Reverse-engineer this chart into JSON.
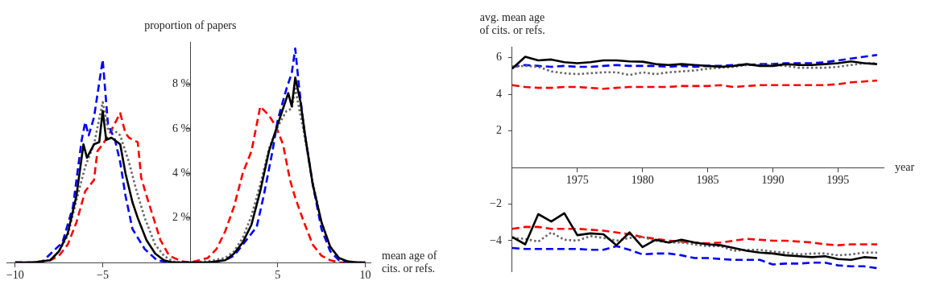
{
  "chart_data": [
    {
      "type": "line",
      "ylabel": "proportion of papers",
      "xlabel": "mean age of\ncits. or refs.",
      "xlim": [
        -10.5,
        10.3
      ],
      "xticks": [
        {
          "value": -10,
          "label": "−10"
        },
        {
          "value": -5,
          "label": "−5"
        },
        5,
        10
      ],
      "ylim": [
        0,
        9.9
      ],
      "yticks": [
        {
          "value": 2,
          "label": "2 %"
        },
        {
          "value": 4,
          "label": "4 %"
        },
        {
          "value": 6,
          "label": "6 %"
        },
        {
          "value": 8,
          "label": "8 %"
        }
      ],
      "marker": "none",
      "series": [
        {
          "color": "#000000",
          "line_style": "solid",
          "x": [
            -10,
            -9,
            -8,
            -7.5,
            -7,
            -6.5,
            -6.1,
            -5.9,
            -5.5,
            -5.2,
            -5,
            -4.8,
            -4.5,
            -4,
            -3.7,
            -3.3,
            -3,
            -2.5,
            -2,
            -1.5,
            -1,
            0,
            1,
            2,
            2.5,
            3,
            3.5,
            4,
            4.5,
            5,
            5.6,
            5.8,
            6,
            6.3,
            6.6,
            7,
            7.5,
            8,
            8.5,
            9,
            9.5,
            10
          ],
          "values": [
            0,
            0,
            0.1,
            0.5,
            1.3,
            3,
            5.3,
            4.7,
            5.3,
            5.4,
            6.8,
            5.5,
            5.6,
            5.3,
            4,
            2.7,
            2,
            1,
            0.4,
            0.1,
            0,
            0,
            0,
            0.1,
            0.4,
            0.9,
            1.7,
            3.2,
            5,
            6.2,
            7.6,
            7,
            8.3,
            7.2,
            5.5,
            3.5,
            1.8,
            0.7,
            0.2,
            0.05,
            0,
            0
          ]
        },
        {
          "color": "#666666",
          "line_style": "dotted",
          "x": [
            -10,
            -9,
            -8,
            -7.5,
            -7,
            -6.5,
            -6,
            -5.5,
            -5,
            -4.7,
            -4.3,
            -4,
            -3.5,
            -3.1,
            -2.6,
            -2,
            -1.5,
            -1,
            -0.5,
            0,
            1,
            2,
            2.5,
            3,
            3.5,
            4,
            4.5,
            5,
            5.5,
            5.8,
            6,
            6.2,
            6.5,
            7,
            7.5,
            8,
            8.5,
            9,
            10
          ],
          "values": [
            0,
            0,
            0.1,
            0.5,
            1.2,
            2.8,
            4.3,
            5.3,
            7.2,
            6,
            5.9,
            5.7,
            4.5,
            3.3,
            2,
            0.8,
            0.3,
            0.05,
            0,
            0,
            0.05,
            0.2,
            0.5,
            1.1,
            2.1,
            3.5,
            5.1,
            6.1,
            6.8,
            6.9,
            7.8,
            7,
            5.8,
            3.6,
            1.8,
            0.7,
            0.2,
            0,
            0
          ]
        },
        {
          "color": "#0000ff",
          "line_style": "dashed",
          "x": [
            -10,
            -9,
            -8.5,
            -8.1,
            -7.3,
            -6.7,
            -6.2,
            -6,
            -5.8,
            -5.5,
            -5,
            -4.7,
            -4.3,
            -4,
            -3.7,
            -3.3,
            -2.6,
            -1.9,
            -1.2,
            0,
            1,
            2,
            2.5,
            3,
            3.8,
            4.2,
            4.7,
            5,
            5.5,
            5.8,
            6,
            6.2,
            6.5,
            7,
            7.5,
            8,
            8.5,
            9,
            10
          ],
          "values": [
            0,
            0,
            0,
            0.3,
            0.9,
            2.5,
            5.5,
            6.3,
            5.7,
            6.5,
            9.1,
            6.2,
            5.5,
            4.5,
            3,
            1.5,
            0.6,
            0.1,
            0,
            0,
            0,
            0.1,
            0.3,
            0.8,
            1.6,
            3,
            5,
            6.4,
            7.8,
            8.5,
            9.6,
            8,
            6,
            3.5,
            1.5,
            0.5,
            0.1,
            0,
            0
          ]
        },
        {
          "color": "#ff0000",
          "line_style": "dashed",
          "x": [
            -10,
            -9,
            -8,
            -7.5,
            -7,
            -6.5,
            -6,
            -5.5,
            -5.3,
            -5,
            -4.6,
            -4,
            -3.7,
            -3.5,
            -3,
            -2.8,
            -2.5,
            -2.1,
            -1.7,
            -1.2,
            -0.5,
            0,
            1,
            1.5,
            2,
            2.5,
            3,
            3.5,
            4,
            4.5,
            4.9,
            5.3,
            5.7,
            6,
            6.5,
            7,
            7.5,
            8,
            8.5,
            10
          ],
          "values": [
            0,
            0,
            0.1,
            0.3,
            0.8,
            1.8,
            3.2,
            3.7,
            5,
            5.3,
            5.8,
            6.7,
            5.8,
            5.6,
            5.4,
            3.8,
            3,
            2,
            1,
            0.3,
            0.05,
            0,
            0.2,
            0.6,
            1.4,
            2.5,
            4,
            5,
            7,
            6.6,
            6.1,
            5.3,
            3.7,
            2.9,
            1.8,
            0.8,
            0.3,
            0.1,
            0,
            0
          ]
        }
      ]
    },
    {
      "type": "line",
      "ylabel": "avg. mean age\nof cits. or refs.",
      "xlabel": "year",
      "x": [
        1970,
        1971,
        1972,
        1973,
        1974,
        1975,
        1976,
        1977,
        1978,
        1979,
        1980,
        1981,
        1982,
        1983,
        1984,
        1985,
        1986,
        1987,
        1988,
        1989,
        1990,
        1991,
        1992,
        1993,
        1994,
        1995,
        1996,
        1997,
        1998
      ],
      "xlim": [
        1970,
        1998.5
      ],
      "xticks": [
        1975,
        1980,
        1985,
        1990,
        1995
      ],
      "ylim": [
        -5.7,
        6.6
      ],
      "yticks": [
        {
          "value": -4,
          "label": "−4"
        },
        {
          "value": -2,
          "label": "−2"
        },
        2,
        4,
        6
      ],
      "marker": "none",
      "series": [
        {
          "color": "#000000",
          "line_style": "solid",
          "values": [
            5.4,
            6.05,
            5.85,
            5.9,
            5.75,
            5.7,
            5.75,
            5.85,
            5.85,
            5.8,
            5.78,
            5.65,
            5.6,
            5.65,
            5.6,
            5.55,
            5.5,
            5.55,
            5.65,
            5.55,
            5.55,
            5.65,
            5.6,
            5.6,
            5.65,
            5.7,
            5.8,
            5.7,
            5.65
          ]
        },
        {
          "color": "#666666",
          "line_style": "dotted",
          "values": [
            5.5,
            5.55,
            5.5,
            5.25,
            5.15,
            5.1,
            5.15,
            5.2,
            5.2,
            5.05,
            5.2,
            5.1,
            5.2,
            5.25,
            5.3,
            5.4,
            5.45,
            5.5,
            5.6,
            5.6,
            5.6,
            5.55,
            5.45,
            5.45,
            5.45,
            5.5,
            5.6,
            5.7,
            5.7
          ]
        },
        {
          "color": "#0000ff",
          "line_style": "dashed",
          "values": [
            5.5,
            5.6,
            5.55,
            5.5,
            5.55,
            5.5,
            5.5,
            5.55,
            5.6,
            5.55,
            5.55,
            5.55,
            5.5,
            5.55,
            5.5,
            5.55,
            5.55,
            5.6,
            5.6,
            5.65,
            5.65,
            5.7,
            5.7,
            5.7,
            5.75,
            5.85,
            5.95,
            6.05,
            6.15
          ]
        },
        {
          "color": "#ff0000",
          "line_style": "dashed",
          "values": [
            4.5,
            4.4,
            4.35,
            4.35,
            4.4,
            4.4,
            4.35,
            4.3,
            4.35,
            4.4,
            4.4,
            4.4,
            4.4,
            4.45,
            4.45,
            4.45,
            4.5,
            4.4,
            4.45,
            4.5,
            4.5,
            4.5,
            4.5,
            4.5,
            4.5,
            4.55,
            4.65,
            4.7,
            4.75
          ]
        },
        {
          "color": "#000000",
          "line_style": "solid",
          "values": [
            -3.8,
            -4.2,
            -2.55,
            -2.95,
            -2.5,
            -3.7,
            -3.6,
            -3.65,
            -4.25,
            -3.55,
            -4.35,
            -3.95,
            -4.1,
            -3.95,
            -4.1,
            -4.2,
            -4.25,
            -4.4,
            -4.55,
            -4.65,
            -4.7,
            -4.8,
            -4.85,
            -4.9,
            -4.85,
            -5,
            -5.05,
            -4.9,
            -4.95
          ]
        },
        {
          "color": "#666666",
          "line_style": "dotted",
          "values": [
            -3.85,
            -3.9,
            -4.05,
            -3.55,
            -3.95,
            -4,
            -3.75,
            -3.85,
            -4,
            -3.85,
            -3.8,
            -4,
            -4.1,
            -4.1,
            -4.2,
            -4.3,
            -4.3,
            -4.55,
            -4.5,
            -4.5,
            -4.6,
            -4.65,
            -4.75,
            -4.7,
            -4.7,
            -4.8,
            -4.75,
            -4.65,
            -4.65
          ]
        },
        {
          "color": "#0000ff",
          "line_style": "dashed",
          "values": [
            -4.4,
            -4.45,
            -4.45,
            -4.45,
            -4.45,
            -4.45,
            -4.5,
            -4.5,
            -4.3,
            -4.5,
            -4.75,
            -4.7,
            -4.7,
            -4.8,
            -4.95,
            -4.95,
            -5,
            -5.05,
            -5.05,
            -5.05,
            -5.3,
            -5.25,
            -5.25,
            -5.2,
            -5.2,
            -5.35,
            -5.4,
            -5.4,
            -5.5
          ]
        },
        {
          "color": "#ff0000",
          "line_style": "dashed",
          "values": [
            -3.35,
            -3.25,
            -3.25,
            -3.35,
            -3.35,
            -3.35,
            -3.4,
            -3.45,
            -3.55,
            -3.65,
            -3.8,
            -3.9,
            -4,
            -4.05,
            -4.1,
            -4.15,
            -4.1,
            -4,
            -3.9,
            -3.95,
            -4,
            -4,
            -4.05,
            -4.1,
            -4.2,
            -4.25,
            -4.2,
            -4.2,
            -4.2
          ]
        }
      ]
    }
  ]
}
